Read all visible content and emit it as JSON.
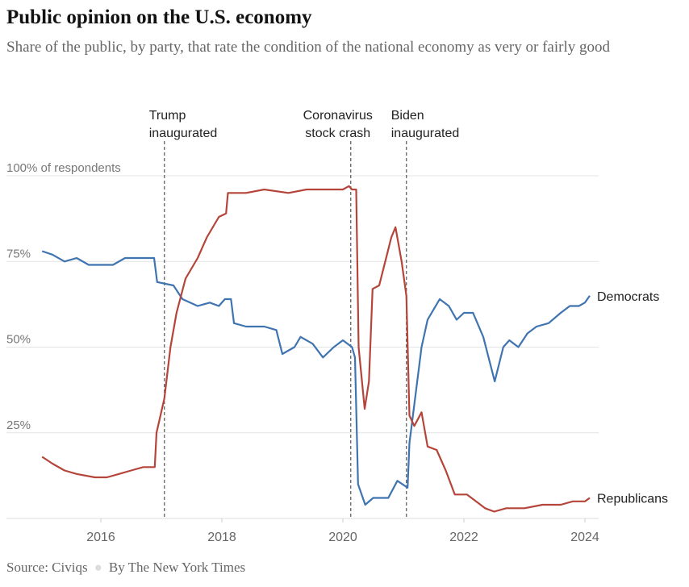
{
  "title": "Public opinion on the U.S. economy",
  "subtitle": "Share of the public, by party, that rate the condition of the national economy as very or fairly good",
  "footer": {
    "source": "Source: Civiqs",
    "credit": "By The New York Times"
  },
  "chart_data": {
    "type": "line",
    "title": "Public opinion on the U.S. economy",
    "subtitle": "Share of the public, by party, that rate the condition of the national economy as very or fairly good",
    "ylabel": "",
    "ylim": [
      0,
      100
    ],
    "xlim": [
      2015.03,
      2024.08
    ],
    "grid": true,
    "yticks": [
      {
        "value": 25,
        "label": "25%"
      },
      {
        "value": 50,
        "label": "50%"
      },
      {
        "value": 75,
        "label": "75%"
      },
      {
        "value": 100,
        "label": "100% of respondents"
      }
    ],
    "xticks": [
      {
        "value": 2016,
        "label": "2016"
      },
      {
        "value": 2018,
        "label": "2018"
      },
      {
        "value": 2020,
        "label": "2020"
      },
      {
        "value": 2022,
        "label": "2022"
      },
      {
        "value": 2024,
        "label": "2024"
      }
    ],
    "annotations": [
      {
        "x": 2017.05,
        "lines": [
          "Trump",
          "inaugurated"
        ],
        "align": "left"
      },
      {
        "x": 2020.13,
        "lines": [
          "Coronavirus",
          "stock crash"
        ],
        "align": "right"
      },
      {
        "x": 2021.05,
        "lines": [
          "Biden",
          "inaugurated"
        ],
        "align": "left"
      }
    ],
    "series": [
      {
        "name": "Democrats",
        "color": "#3f74b0",
        "points": [
          [
            2015.03,
            78
          ],
          [
            2015.2,
            77
          ],
          [
            2015.4,
            75
          ],
          [
            2015.6,
            76
          ],
          [
            2015.8,
            74
          ],
          [
            2016.0,
            74
          ],
          [
            2016.2,
            74
          ],
          [
            2016.4,
            76
          ],
          [
            2016.6,
            76
          ],
          [
            2016.88,
            76
          ],
          [
            2016.93,
            69
          ],
          [
            2017.2,
            68
          ],
          [
            2017.35,
            64
          ],
          [
            2017.6,
            62
          ],
          [
            2017.8,
            63
          ],
          [
            2017.95,
            62
          ],
          [
            2018.05,
            64
          ],
          [
            2018.15,
            64
          ],
          [
            2018.2,
            57
          ],
          [
            2018.4,
            56
          ],
          [
            2018.7,
            56
          ],
          [
            2018.9,
            55
          ],
          [
            2019.0,
            48
          ],
          [
            2019.2,
            50
          ],
          [
            2019.3,
            53
          ],
          [
            2019.5,
            51
          ],
          [
            2019.67,
            47
          ],
          [
            2019.85,
            50
          ],
          [
            2020.0,
            52
          ],
          [
            2020.15,
            50
          ],
          [
            2020.2,
            47
          ],
          [
            2020.25,
            10
          ],
          [
            2020.37,
            4
          ],
          [
            2020.5,
            6
          ],
          [
            2020.75,
            6
          ],
          [
            2020.9,
            11
          ],
          [
            2021.07,
            9
          ],
          [
            2021.1,
            22
          ],
          [
            2021.3,
            50
          ],
          [
            2021.4,
            58
          ],
          [
            2021.6,
            64
          ],
          [
            2021.75,
            62
          ],
          [
            2021.88,
            58
          ],
          [
            2022.0,
            60
          ],
          [
            2022.15,
            60
          ],
          [
            2022.32,
            53
          ],
          [
            2022.51,
            40
          ],
          [
            2022.65,
            50
          ],
          [
            2022.75,
            52
          ],
          [
            2022.9,
            50
          ],
          [
            2023.05,
            54
          ],
          [
            2023.2,
            56
          ],
          [
            2023.4,
            57
          ],
          [
            2023.6,
            60
          ],
          [
            2023.75,
            62
          ],
          [
            2023.9,
            62
          ],
          [
            2024.0,
            63
          ],
          [
            2024.08,
            65
          ]
        ]
      },
      {
        "name": "Republicans",
        "color": "#b5453a",
        "points": [
          [
            2015.03,
            18
          ],
          [
            2015.2,
            16
          ],
          [
            2015.4,
            14
          ],
          [
            2015.6,
            13
          ],
          [
            2015.9,
            12
          ],
          [
            2016.1,
            12
          ],
          [
            2016.3,
            13
          ],
          [
            2016.5,
            14
          ],
          [
            2016.7,
            15
          ],
          [
            2016.89,
            15
          ],
          [
            2016.92,
            25
          ],
          [
            2017.05,
            35
          ],
          [
            2017.15,
            50
          ],
          [
            2017.25,
            60
          ],
          [
            2017.4,
            70
          ],
          [
            2017.6,
            76
          ],
          [
            2017.75,
            82
          ],
          [
            2017.95,
            88
          ],
          [
            2018.07,
            89
          ],
          [
            2018.1,
            95
          ],
          [
            2018.4,
            95
          ],
          [
            2018.7,
            96
          ],
          [
            2019.1,
            95
          ],
          [
            2019.4,
            96
          ],
          [
            2020.0,
            96
          ],
          [
            2020.1,
            97
          ],
          [
            2020.15,
            96
          ],
          [
            2020.22,
            96
          ],
          [
            2020.26,
            50
          ],
          [
            2020.36,
            32
          ],
          [
            2020.43,
            40
          ],
          [
            2020.49,
            67
          ],
          [
            2020.6,
            68
          ],
          [
            2020.7,
            75
          ],
          [
            2020.8,
            82
          ],
          [
            2020.87,
            85
          ],
          [
            2020.97,
            75
          ],
          [
            2021.05,
            65
          ],
          [
            2021.1,
            30
          ],
          [
            2021.18,
            27
          ],
          [
            2021.3,
            31
          ],
          [
            2021.4,
            21
          ],
          [
            2021.55,
            20
          ],
          [
            2021.7,
            14
          ],
          [
            2021.85,
            7
          ],
          [
            2022.05,
            7
          ],
          [
            2022.2,
            5
          ],
          [
            2022.35,
            3
          ],
          [
            2022.5,
            2
          ],
          [
            2022.7,
            3
          ],
          [
            2023.0,
            3
          ],
          [
            2023.3,
            4
          ],
          [
            2023.6,
            4
          ],
          [
            2023.8,
            5
          ],
          [
            2024.0,
            5
          ],
          [
            2024.08,
            6
          ]
        ]
      }
    ]
  }
}
